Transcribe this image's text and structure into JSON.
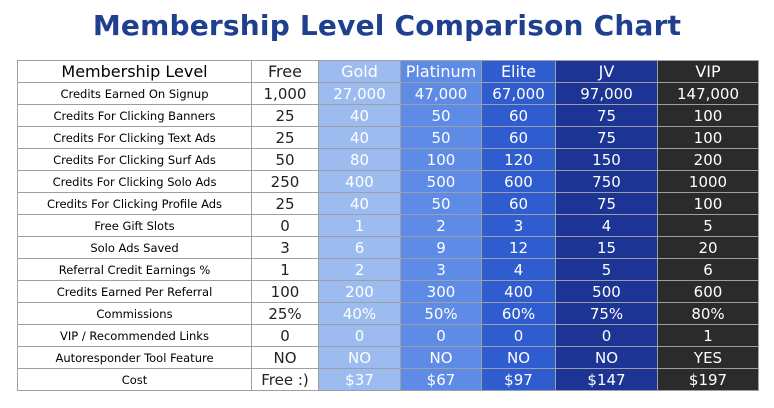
{
  "title": "Membership Level Comparison Chart",
  "table": {
    "corner_label": "Membership Level",
    "levels": [
      "Free",
      "Gold",
      "Platinum",
      "Elite",
      "JV",
      "VIP"
    ],
    "level_colors": {
      "Free": "#ffffff",
      "Gold": "#9cbcf0",
      "Platinum": "#5d8be6",
      "Elite": "#2f5ccf",
      "JV": "#1c3494",
      "VIP": "#2b2b2b"
    },
    "rows": [
      {
        "label": "Credits Earned On Signup",
        "values": [
          "1,000",
          "27,000",
          "47,000",
          "67,000",
          "97,000",
          "147,000"
        ]
      },
      {
        "label": "Credits For Clicking Banners",
        "values": [
          "25",
          "40",
          "50",
          "60",
          "75",
          "100"
        ]
      },
      {
        "label": "Credits For Clicking Text Ads",
        "values": [
          "25",
          "40",
          "50",
          "60",
          "75",
          "100"
        ]
      },
      {
        "label": "Credits For Clicking Surf Ads",
        "values": [
          "50",
          "80",
          "100",
          "120",
          "150",
          "200"
        ]
      },
      {
        "label": "Credits For Clicking Solo Ads",
        "values": [
          "250",
          "400",
          "500",
          "600",
          "750",
          "1000"
        ]
      },
      {
        "label": "Credits For Clicking Profile Ads",
        "values": [
          "25",
          "40",
          "50",
          "60",
          "75",
          "100"
        ]
      },
      {
        "label": "Free Gift Slots",
        "values": [
          "0",
          "1",
          "2",
          "3",
          "4",
          "5"
        ]
      },
      {
        "label": "Solo Ads Saved",
        "values": [
          "3",
          "6",
          "9",
          "12",
          "15",
          "20"
        ]
      },
      {
        "label": "Referral Credit Earnings %",
        "values": [
          "1",
          "2",
          "3",
          "4",
          "5",
          "6"
        ]
      },
      {
        "label": "Credits Earned Per Referral",
        "values": [
          "100",
          "200",
          "300",
          "400",
          "500",
          "600"
        ]
      },
      {
        "label": "Commissions",
        "values": [
          "25%",
          "40%",
          "50%",
          "60%",
          "75%",
          "80%"
        ]
      },
      {
        "label": "VIP / Recommended Links",
        "values": [
          "0",
          "0",
          "0",
          "0",
          "0",
          "1"
        ]
      },
      {
        "label": "Autoresponder Tool Feature",
        "values": [
          "NO",
          "NO",
          "NO",
          "NO",
          "NO",
          "YES"
        ]
      },
      {
        "label": "Cost",
        "values": [
          "Free :)",
          "$37",
          "$67",
          "$97",
          "$147",
          "$197"
        ]
      }
    ]
  }
}
